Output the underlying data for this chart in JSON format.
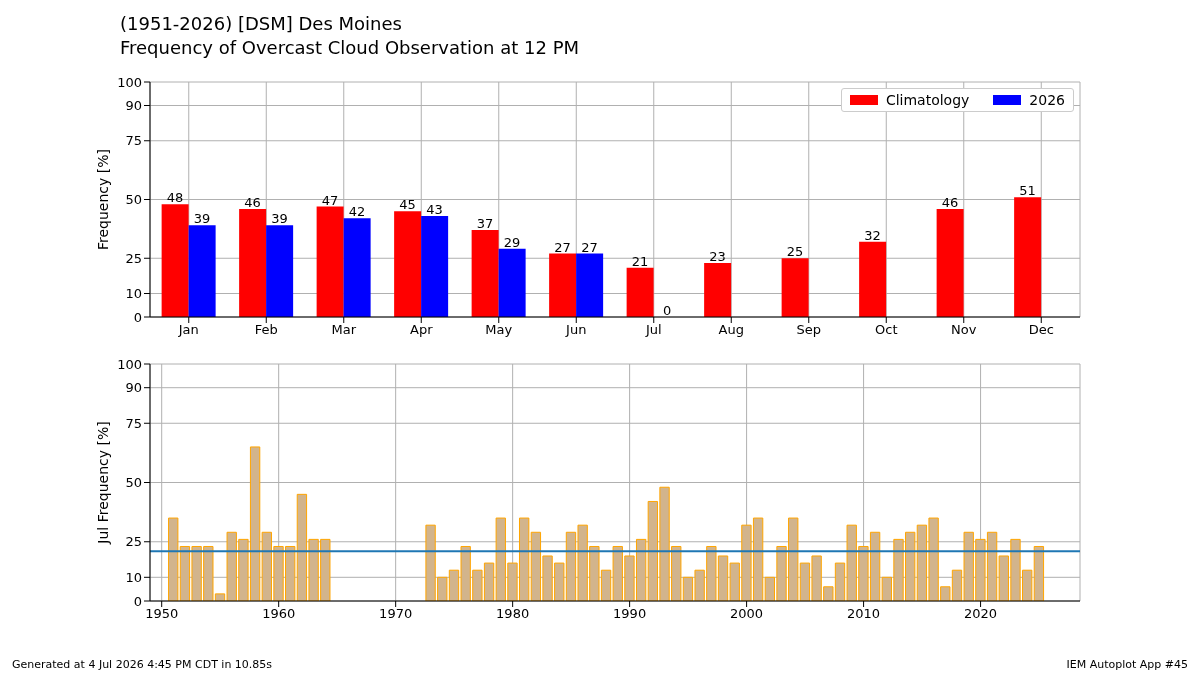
{
  "chart_data": [
    {
      "type": "bar",
      "title": "(1951-2026) [DSM] Des Moines",
      "subtitle": "Frequency of Overcast Cloud Observation at 12 PM",
      "ylabel": "Frequency [%]",
      "categories": [
        "Jan",
        "Feb",
        "Mar",
        "Apr",
        "May",
        "Jun",
        "Jul",
        "Aug",
        "Sep",
        "Oct",
        "Nov",
        "Dec"
      ],
      "series": [
        {
          "name": "Climatology",
          "color": "#ff0000",
          "values": [
            48,
            46,
            47,
            45,
            37,
            27,
            21,
            23,
            25,
            32,
            46,
            51
          ]
        },
        {
          "name": "2026",
          "color": "#0000ff",
          "values": [
            39,
            39,
            42,
            43,
            29,
            27,
            0,
            null,
            null,
            null,
            null,
            null
          ]
        }
      ],
      "ylim": [
        0,
        100
      ],
      "yticks": [
        0,
        10,
        25,
        50,
        75,
        90,
        100
      ],
      "grid": true,
      "legend": "top right",
      "data_labels": true
    },
    {
      "type": "bar",
      "ylabel": "Jul Frequency [%]",
      "x": [
        1951,
        1952,
        1953,
        1954,
        1955,
        1956,
        1957,
        1958,
        1959,
        1960,
        1961,
        1962,
        1963,
        1964,
        1965,
        1966,
        1967,
        1968,
        1969,
        1970,
        1971,
        1972,
        1973,
        1974,
        1975,
        1976,
        1977,
        1978,
        1979,
        1980,
        1981,
        1982,
        1983,
        1984,
        1985,
        1986,
        1987,
        1988,
        1989,
        1990,
        1991,
        1992,
        1993,
        1994,
        1995,
        1996,
        1997,
        1998,
        1999,
        2000,
        2001,
        2002,
        2003,
        2004,
        2005,
        2006,
        2007,
        2008,
        2009,
        2010,
        2011,
        2012,
        2013,
        2014,
        2015,
        2016,
        2017,
        2018,
        2019,
        2020,
        2021,
        2022,
        2023,
        2024,
        2025,
        2026
      ],
      "values": [
        35,
        23,
        23,
        23,
        3,
        29,
        26,
        65,
        29,
        23,
        23,
        45,
        26,
        26,
        0,
        0,
        0,
        0,
        0,
        0,
        0,
        0,
        32,
        10,
        13,
        23,
        13,
        16,
        35,
        16,
        35,
        29,
        19,
        16,
        29,
        32,
        23,
        13,
        23,
        19,
        26,
        42,
        48,
        23,
        10,
        13,
        23,
        19,
        16,
        32,
        35,
        10,
        23,
        35,
        16,
        19,
        6,
        16,
        32,
        23,
        29,
        10,
        26,
        29,
        32,
        35,
        6,
        13,
        29,
        26,
        29,
        19,
        26,
        13,
        23,
        0
      ],
      "color": "#d2b48c",
      "xlim": [
        1949,
        2028.5
      ],
      "xticks": [
        1950,
        1960,
        1970,
        1980,
        1990,
        2000,
        2010,
        2020
      ],
      "ylim": [
        0,
        100
      ],
      "yticks": [
        0,
        10,
        25,
        50,
        75,
        90,
        100
      ],
      "grid": true,
      "ref_lines": [
        {
          "axis": "y",
          "value": 21,
          "color": "#1f77b4"
        }
      ],
      "annotations": [
        "Generated at 4 Jul 2026 4:45 PM CDT in 10.85s",
        "IEM Autoplot App #45"
      ]
    }
  ]
}
